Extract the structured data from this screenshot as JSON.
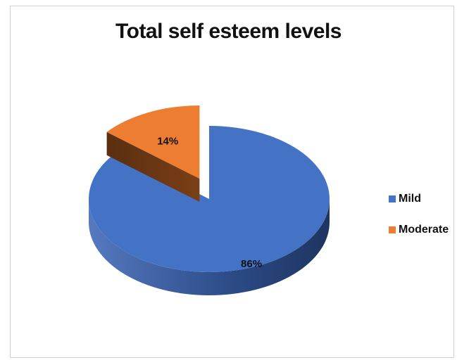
{
  "chart_data": {
    "type": "pie",
    "title": "Total self esteem levels",
    "categories": [
      "Mild",
      "Moderate"
    ],
    "values": [
      86,
      14
    ],
    "labels": [
      "86%",
      "14%"
    ],
    "colors": [
      "#4472C4",
      "#ED7D31"
    ],
    "exploded": "Moderate",
    "style": "3d",
    "legend_position": "right"
  }
}
